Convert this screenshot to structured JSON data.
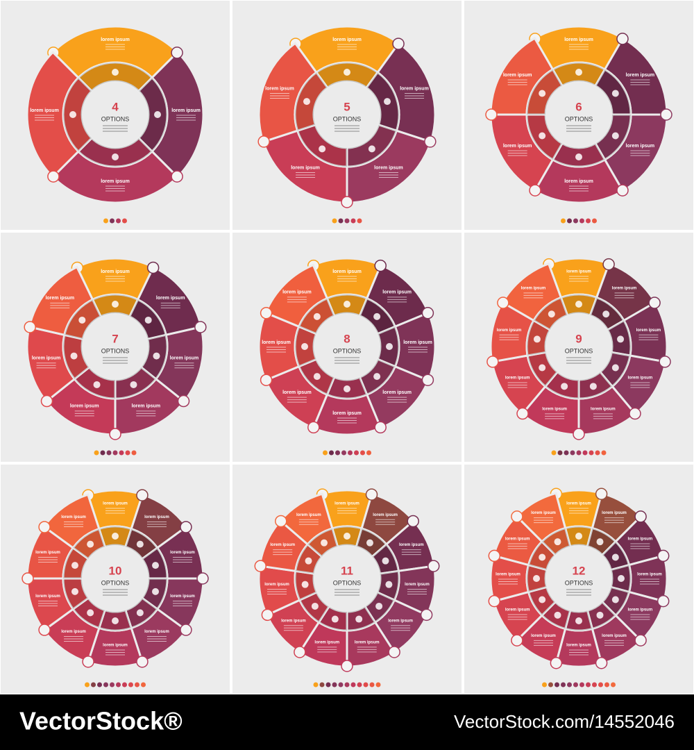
{
  "panels": [
    {
      "number": "4",
      "caption": "OPTIONS",
      "segments": [
        "lorem ipsum",
        "lorem ipsum",
        "lorem ipsum",
        "lorem ipsum"
      ]
    },
    {
      "number": "5",
      "caption": "OPTIONS",
      "segments": [
        "lorem ipsum",
        "lorem ipsum",
        "lorem ipsum",
        "lorem ipsum",
        "lorem ipsum"
      ]
    },
    {
      "number": "6",
      "caption": "OPTIONS",
      "segments": [
        "lorem ipsum",
        "lorem ipsum",
        "lorem ipsum",
        "lorem ipsum",
        "lorem ipsum",
        "lorem ipsum"
      ]
    },
    {
      "number": "7",
      "caption": "OPTIONS",
      "segments": [
        "lorem ipsum",
        "lorem ipsum",
        "lorem ipsum",
        "lorem ipsum",
        "lorem ipsum",
        "lorem ipsum",
        "lorem ipsum"
      ]
    },
    {
      "number": "8",
      "caption": "OPTIONS",
      "segments": [
        "lorem ipsum",
        "lorem ipsum",
        "lorem ipsum",
        "lorem ipsum",
        "lorem ipsum",
        "lorem ipsum",
        "lorem ipsum",
        "lorem ipsum"
      ]
    },
    {
      "number": "9",
      "caption": "OPTIONS",
      "segments": [
        "lorem ipsum",
        "lorem ipsum",
        "lorem ipsum",
        "lorem ipsum",
        "lorem ipsum",
        "lorem ipsum",
        "lorem ipsum",
        "lorem ipsum",
        "lorem ipsum"
      ]
    },
    {
      "number": "10",
      "caption": "OPTIONS",
      "segments": [
        "lorem ipsum",
        "lorem ipsum",
        "lorem ipsum",
        "lorem ipsum",
        "lorem ipsum",
        "lorem ipsum",
        "lorem ipsum",
        "lorem ipsum",
        "lorem ipsum",
        "lorem ipsum"
      ]
    },
    {
      "number": "11",
      "caption": "OPTIONS",
      "segments": [
        "lorem ipsum",
        "lorem ipsum",
        "lorem ipsum",
        "lorem ipsum",
        "lorem ipsum",
        "lorem ipsum",
        "lorem ipsum",
        "lorem ipsum",
        "lorem ipsum",
        "lorem ipsum",
        "lorem ipsum"
      ]
    },
    {
      "number": "12",
      "caption": "OPTIONS",
      "segments": [
        "lorem ipsum",
        "lorem ipsum",
        "lorem ipsum",
        "lorem ipsum",
        "lorem ipsum",
        "lorem ipsum",
        "lorem ipsum",
        "lorem ipsum",
        "lorem ipsum",
        "lorem ipsum",
        "lorem ipsum",
        "lorem ipsum"
      ]
    }
  ],
  "footer": {
    "brand": "VectorStock®",
    "url": "VectorStock.com/14552046"
  }
}
